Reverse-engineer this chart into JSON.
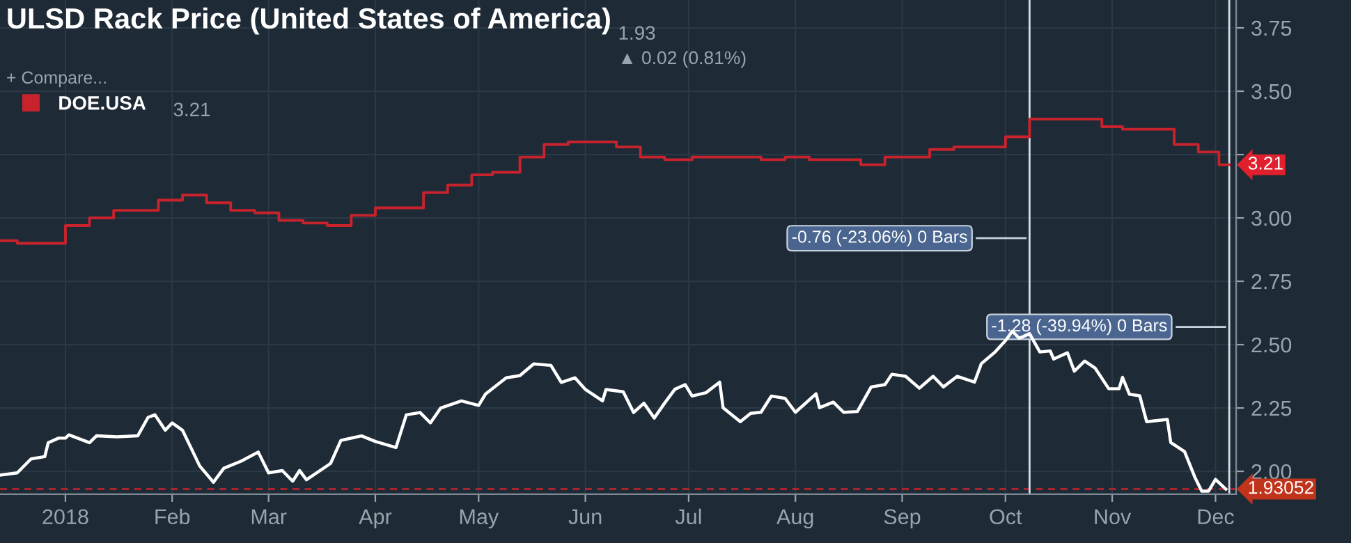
{
  "chart_data": {
    "type": "line",
    "title": "ULSD Rack Price (United States of America)",
    "xlim": [
      "2017-12-13",
      "2018-12-07"
    ],
    "ylim": [
      1.91,
      3.86
    ],
    "xticks": [
      {
        "value": "2018-01-01",
        "label": "2018"
      },
      {
        "value": "2018-02-01",
        "label": "Feb"
      },
      {
        "value": "2018-03-01",
        "label": "Mar"
      },
      {
        "value": "2018-04-01",
        "label": "Apr"
      },
      {
        "value": "2018-05-01",
        "label": "May"
      },
      {
        "value": "2018-06-01",
        "label": "Jun"
      },
      {
        "value": "2018-07-01",
        "label": "Jul"
      },
      {
        "value": "2018-08-01",
        "label": "Aug"
      },
      {
        "value": "2018-09-01",
        "label": "Sep"
      },
      {
        "value": "2018-10-01",
        "label": "Oct"
      },
      {
        "value": "2018-11-01",
        "label": "Nov"
      },
      {
        "value": "2018-12-01",
        "label": "Dec"
      }
    ],
    "yticks": [
      {
        "value": 2.0,
        "label": "2.00"
      },
      {
        "value": 2.25,
        "label": "2.25"
      },
      {
        "value": 2.5,
        "label": "2.50"
      },
      {
        "value": 2.75,
        "label": "2.75"
      },
      {
        "value": 3.0,
        "label": "3.00"
      },
      {
        "value": 3.25,
        "label": null
      },
      {
        "value": 3.5,
        "label": "3.50"
      },
      {
        "value": 3.75,
        "label": "3.75"
      }
    ],
    "grid": true,
    "legend": "top left",
    "series": [
      {
        "color": "#ffffff",
        "x": [
          "2017-12-13",
          "2017-12-18",
          "2017-12-22",
          "2017-12-26",
          "2017-12-27",
          "2017-12-30",
          "2018-01-01",
          "2018-01-02",
          "2018-01-08",
          "2018-01-10",
          "2018-01-16",
          "2018-01-22",
          "2018-01-25",
          "2018-01-27",
          "2018-01-30",
          "2018-02-01",
          "2018-02-04",
          "2018-02-09",
          "2018-02-13",
          "2018-02-16",
          "2018-02-21",
          "2018-02-26",
          "2018-03-01",
          "2018-03-05",
          "2018-03-08",
          "2018-03-10",
          "2018-03-12",
          "2018-03-19",
          "2018-03-22",
          "2018-03-28",
          "2018-04-01",
          "2018-04-07",
          "2018-04-10",
          "2018-04-14",
          "2018-04-17",
          "2018-04-20",
          "2018-04-26",
          "2018-05-01",
          "2018-05-03",
          "2018-05-09",
          "2018-05-13",
          "2018-05-17",
          "2018-05-22",
          "2018-05-25",
          "2018-05-29",
          "2018-06-01",
          "2018-06-06",
          "2018-06-07",
          "2018-06-12",
          "2018-06-15",
          "2018-06-18",
          "2018-06-21",
          "2018-06-24",
          "2018-06-27",
          "2018-06-30",
          "2018-07-02",
          "2018-07-06",
          "2018-07-10",
          "2018-07-11",
          "2018-07-16",
          "2018-07-19",
          "2018-07-22",
          "2018-07-25",
          "2018-07-29",
          "2018-08-01",
          "2018-08-07",
          "2018-08-08",
          "2018-08-12",
          "2018-08-15",
          "2018-08-19",
          "2018-08-23",
          "2018-08-27",
          "2018-08-29",
          "2018-09-02",
          "2018-09-06",
          "2018-09-10",
          "2018-09-13",
          "2018-09-17",
          "2018-09-22",
          "2018-09-24",
          "2018-09-28",
          "2018-10-01",
          "2018-10-03",
          "2018-10-05",
          "2018-10-08",
          "2018-10-11",
          "2018-10-14",
          "2018-10-15",
          "2018-10-19",
          "2018-10-21",
          "2018-10-24",
          "2018-10-27",
          "2018-10-31",
          "2018-11-03",
          "2018-11-04",
          "2018-11-06",
          "2018-11-09",
          "2018-11-11",
          "2018-11-17",
          "2018-11-18",
          "2018-11-22",
          "2018-11-25",
          "2018-11-27",
          "2018-11-29",
          "2018-12-01",
          "2018-12-04"
        ],
        "values": [
          1.985,
          1.994,
          2.049,
          2.058,
          2.113,
          2.131,
          2.131,
          2.144,
          2.113,
          2.14,
          2.136,
          2.14,
          2.213,
          2.223,
          2.162,
          2.191,
          2.162,
          2.021,
          1.957,
          2.012,
          2.04,
          2.076,
          1.994,
          2.003,
          1.961,
          2.003,
          1.967,
          2.031,
          2.122,
          2.14,
          2.118,
          2.094,
          2.223,
          2.232,
          2.191,
          2.25,
          2.278,
          2.26,
          2.305,
          2.369,
          2.378,
          2.424,
          2.418,
          2.351,
          2.369,
          2.323,
          2.278,
          2.323,
          2.314,
          2.232,
          2.269,
          2.21,
          2.269,
          2.324,
          2.342,
          2.297,
          2.31,
          2.352,
          2.251,
          2.196,
          2.229,
          2.233,
          2.297,
          2.288,
          2.233,
          2.306,
          2.251,
          2.273,
          2.233,
          2.236,
          2.333,
          2.342,
          2.383,
          2.375,
          2.328,
          2.375,
          2.333,
          2.375,
          2.352,
          2.425,
          2.471,
          2.516,
          2.553,
          2.525,
          2.543,
          2.471,
          2.475,
          2.443,
          2.468,
          2.395,
          2.435,
          2.408,
          2.326,
          2.326,
          2.371,
          2.304,
          2.298,
          2.196,
          2.205,
          2.114,
          2.078,
          1.977,
          1.922,
          1.922,
          1.968,
          1.93
        ]
      },
      {
        "type": "step",
        "name": "DOE.USA",
        "color": "#c8232c",
        "x": [
          "2017-12-13",
          "2017-12-18",
          "2018-01-01",
          "2018-01-08",
          "2018-01-15",
          "2018-01-28",
          "2018-02-04",
          "2018-02-11",
          "2018-02-18",
          "2018-02-25",
          "2018-03-04",
          "2018-03-11",
          "2018-03-18",
          "2018-03-25",
          "2018-04-01",
          "2018-04-15",
          "2018-04-22",
          "2018-04-29",
          "2018-05-05",
          "2018-05-13",
          "2018-05-20",
          "2018-05-27",
          "2018-06-10",
          "2018-06-17",
          "2018-06-24",
          "2018-07-02",
          "2018-07-22",
          "2018-07-29",
          "2018-08-05",
          "2018-08-20",
          "2018-08-27",
          "2018-09-09",
          "2018-09-16",
          "2018-10-01",
          "2018-10-08",
          "2018-10-21",
          "2018-10-29",
          "2018-11-04",
          "2018-11-19",
          "2018-11-26",
          "2018-12-02",
          "2018-12-05"
        ],
        "values": [
          2.91,
          2.9,
          2.97,
          3.0,
          3.03,
          3.07,
          3.09,
          3.06,
          3.03,
          3.02,
          2.99,
          2.98,
          2.97,
          3.01,
          3.04,
          3.1,
          3.13,
          3.17,
          3.18,
          3.24,
          3.29,
          3.3,
          3.28,
          3.24,
          3.23,
          3.24,
          3.23,
          3.24,
          3.23,
          3.21,
          3.24,
          3.27,
          3.28,
          3.32,
          3.39,
          3.39,
          3.36,
          3.35,
          3.29,
          3.26,
          3.21,
          3.21
        ]
      }
    ],
    "ref_lines": [
      {
        "axis": "y",
        "value": 1.93,
        "color": "#c8232c",
        "line_style": "dashed"
      },
      {
        "axis": "x",
        "value": "2018-10-08",
        "color": "#d8dde3",
        "line_style": "solid"
      },
      {
        "axis": "x",
        "value": "2018-12-05",
        "color": "#d8dde3",
        "line_style": "solid"
      }
    ],
    "annotations": [
      "1.93",
      "▲ 0.02 (0.81%)",
      "+ Compare...",
      "3.21",
      {
        "text": "3.21",
        "x": "2018-12-05",
        "y": 3.21
      },
      {
        "text": "1.93052",
        "x": "2018-12-05",
        "y": 1.93
      },
      {
        "text": "-0.76 (-23.06%) 0 Bars",
        "x": "2018-10-08",
        "y": 2.92
      },
      {
        "text": "-1.28 (-39.94%) 0 Bars",
        "x": "2018-12-05",
        "y": 2.57
      }
    ]
  }
}
